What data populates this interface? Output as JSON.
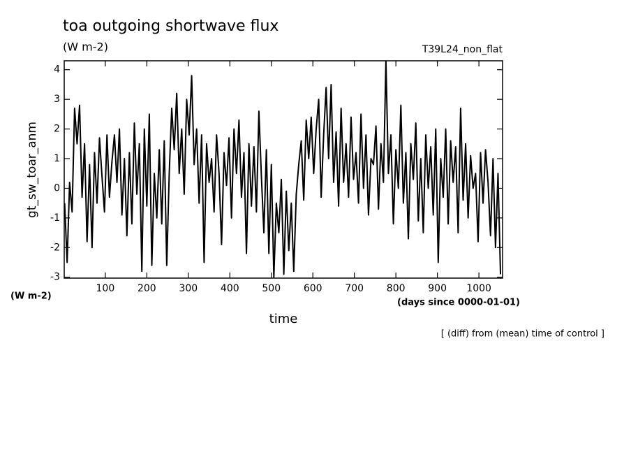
{
  "chart_data": {
    "type": "line",
    "title": "toa outgoing shortwave flux",
    "subtitle": "(W m-2)",
    "run_label": "T39L24_non_flat",
    "y_label": "gt_sw_toar_anm",
    "y_unit": "(W m-2)",
    "x_label": "time",
    "x_unit": "(days since 0000-01-01)",
    "note": "[ (diff) from (mean) time of control ]",
    "color": "#000000",
    "x": [
      2,
      8,
      14,
      20,
      26,
      32,
      38,
      44,
      50,
      56,
      62,
      68,
      74,
      80,
      86,
      92,
      98,
      104,
      110,
      116,
      122,
      128,
      134,
      140,
      146,
      152,
      158,
      164,
      170,
      176,
      182,
      188,
      194,
      200,
      206,
      212,
      218,
      224,
      230,
      236,
      242,
      248,
      254,
      260,
      266,
      272,
      278,
      284,
      290,
      296,
      302,
      308,
      314,
      320,
      326,
      332,
      338,
      344,
      350,
      356,
      362,
      368,
      374,
      380,
      386,
      392,
      398,
      404,
      410,
      416,
      422,
      428,
      434,
      440,
      446,
      452,
      458,
      464,
      470,
      476,
      482,
      488,
      494,
      500,
      506,
      512,
      518,
      524,
      530,
      536,
      542,
      548,
      554,
      560,
      566,
      572,
      578,
      584,
      590,
      596,
      602,
      608,
      614,
      620,
      626,
      632,
      638,
      644,
      650,
      656,
      662,
      668,
      674,
      680,
      686,
      692,
      698,
      704,
      710,
      716,
      722,
      728,
      734,
      740,
      746,
      752,
      758,
      764,
      770,
      776,
      782,
      788,
      794,
      800,
      806,
      812,
      818,
      824,
      830,
      836,
      842,
      848,
      854,
      860,
      866,
      872,
      878,
      884,
      890,
      896,
      902,
      908,
      914,
      920,
      926,
      932,
      938,
      944,
      950,
      956,
      962,
      968,
      974,
      980,
      986,
      992,
      998,
      1004,
      1010,
      1016,
      1022,
      1028,
      1034,
      1040,
      1046,
      1052
    ],
    "values": [
      -0.5,
      -2.5,
      0.2,
      -0.8,
      2.7,
      1.5,
      2.8,
      -0.3,
      1.5,
      -1.8,
      0.8,
      -2.0,
      1.2,
      -0.5,
      1.7,
      0.4,
      -0.8,
      1.8,
      -0.3,
      0.9,
      1.8,
      0.2,
      2.0,
      -0.9,
      1.0,
      -1.6,
      1.2,
      -1.2,
      2.2,
      -0.2,
      1.5,
      -2.8,
      2.0,
      -0.6,
      2.5,
      -2.6,
      0.5,
      -1.0,
      1.3,
      -1.2,
      1.6,
      -2.6,
      0.5,
      2.7,
      1.3,
      3.2,
      0.5,
      2.0,
      -0.2,
      3.0,
      1.8,
      3.8,
      0.8,
      2.0,
      -0.5,
      1.8,
      -2.5,
      1.5,
      0.2,
      1.0,
      -0.8,
      1.8,
      0.5,
      -1.9,
      1.2,
      0.1,
      1.7,
      -1.0,
      2.0,
      0.5,
      2.3,
      -0.3,
      1.2,
      -2.2,
      1.5,
      -0.6,
      1.4,
      -0.8,
      2.6,
      0.4,
      -1.5,
      1.3,
      -2.2,
      0.8,
      -3.0,
      -0.5,
      -1.5,
      0.3,
      -2.9,
      -0.1,
      -2.1,
      -0.5,
      -2.8,
      -0.2,
      0.8,
      1.6,
      -0.4,
      2.3,
      1.0,
      2.4,
      0.5,
      2.0,
      3.0,
      -0.3,
      1.8,
      3.4,
      1.0,
      3.5,
      0.2,
      1.9,
      -0.6,
      2.7,
      0.2,
      1.5,
      -0.3,
      2.4,
      0.3,
      1.2,
      -0.5,
      2.5,
      0.0,
      1.8,
      -0.9,
      1.0,
      0.8,
      2.1,
      -0.7,
      1.5,
      0.2,
      4.3,
      0.5,
      1.8,
      -1.2,
      1.3,
      0.0,
      2.8,
      -0.5,
      1.2,
      -1.7,
      1.5,
      0.3,
      2.2,
      -1.1,
      1.0,
      -1.5,
      1.8,
      0.0,
      1.4,
      -0.9,
      2.0,
      -2.5,
      1.0,
      -0.3,
      2.0,
      -1.2,
      1.6,
      0.2,
      1.4,
      -1.5,
      2.7,
      -0.4,
      1.5,
      -1.0,
      1.1,
      0.0,
      0.5,
      -1.8,
      1.2,
      -0.5,
      1.3,
      0.2,
      -1.6,
      1.0,
      -2.0,
      0.5,
      -2.9
    ],
    "xlim": [
      1,
      1057
    ],
    "xticks": [
      100,
      200,
      300,
      400,
      500,
      600,
      700,
      800,
      900,
      1000
    ],
    "ylim": [
      -3.03,
      4.3
    ],
    "yticks": [
      -3,
      -2,
      -1,
      0,
      1,
      2,
      3,
      4
    ]
  }
}
